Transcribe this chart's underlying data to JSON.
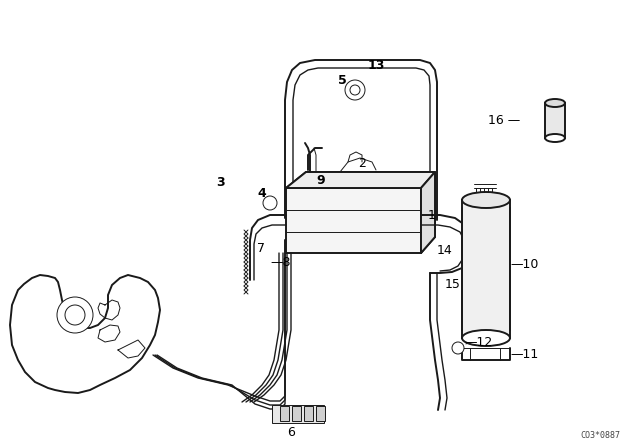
{
  "background_color": "#ffffff",
  "line_color": "#1a1a1a",
  "label_color": "#000000",
  "watermark": "CO3*0887",
  "fig_width": 6.4,
  "fig_height": 4.48,
  "dpi": 100
}
